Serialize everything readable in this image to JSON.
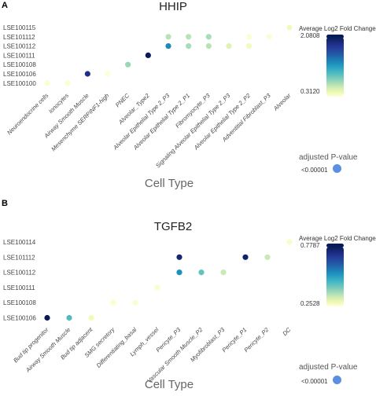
{
  "chart_data": [
    {
      "type": "scatter",
      "panel": "A",
      "title": "HHIP",
      "xlabel": "Cell Type",
      "ylabel": "",
      "y_categories": [
        "LSE100100",
        "LSE100106",
        "LSE100108",
        "LSE100111",
        "LSE100112",
        "LSE101112",
        "LSE100115"
      ],
      "x_categories": [
        "Neuroendocrine cells",
        "Ionocytes",
        "Airway Smooth Muscle",
        "Mesenchyme SERPINF1-high",
        "PNEC",
        "Alveolar_Type2",
        "Alveolar Epithelial Type 2_P3",
        "Alveolar Epithelial Type 2_P1",
        "Fibromyocyte_P3",
        "Signaling Alveolar Epithelial Type 2_P3",
        "Alveolar Epithelial Type 2_P2",
        "Adventitial Fibroblast_P3",
        "Alveolar"
      ],
      "points": [
        {
          "x": "Neuroendocrine cells",
          "y": "LSE100100",
          "value": 0.35
        },
        {
          "x": "Ionocytes",
          "y": "LSE100100",
          "value": 0.35
        },
        {
          "x": "Airway Smooth Muscle",
          "y": "LSE100106",
          "value": 1.9
        },
        {
          "x": "Mesenchyme SERPINF1-high",
          "y": "LSE100106",
          "value": 0.32
        },
        {
          "x": "PNEC",
          "y": "LSE100108",
          "value": 0.9
        },
        {
          "x": "Alveolar_Type2",
          "y": "LSE100111",
          "value": 2.08
        },
        {
          "x": "Alveolar Epithelial Type 2_P3",
          "y": "LSE100112",
          "value": 1.45
        },
        {
          "x": "Alveolar Epithelial Type 2_P3",
          "y": "LSE101112",
          "value": 0.8
        },
        {
          "x": "Alveolar Epithelial Type 2_P1",
          "y": "LSE100112",
          "value": 0.85
        },
        {
          "x": "Alveolar Epithelial Type 2_P1",
          "y": "LSE101112",
          "value": 0.8
        },
        {
          "x": "Fibromyocyte_P3",
          "y": "LSE100112",
          "value": 0.8
        },
        {
          "x": "Fibromyocyte_P3",
          "y": "LSE101112",
          "value": 0.85
        },
        {
          "x": "Signaling Alveolar Epithelial Type 2_P3",
          "y": "LSE100112",
          "value": 0.6
        },
        {
          "x": "Alveolar Epithelial Type 2_P2",
          "y": "LSE100112",
          "value": 0.45
        },
        {
          "x": "Alveolar Epithelial Type 2_P2",
          "y": "LSE101112",
          "value": 0.35
        },
        {
          "x": "Adventitial Fibroblast_P3",
          "y": "LSE101112",
          "value": 0.35
        },
        {
          "x": "Alveolar",
          "y": "LSE100115",
          "value": 0.45
        }
      ],
      "color_legend": {
        "title": "Average Log2 Fold Change",
        "max": 2.0808,
        "min": 0.312,
        "max_label": "2.0808",
        "min_label": "0.3120"
      },
      "size_legend": {
        "title": "adjusted P-value",
        "label": "<0.00001"
      },
      "grid": false
    },
    {
      "type": "scatter",
      "panel": "B",
      "title": "TGFB2",
      "xlabel": "Cell Type",
      "ylabel": "",
      "y_categories": [
        "LSE100106",
        "LSE100108",
        "LSE100111",
        "LSE100112",
        "LSE101112",
        "LSE100114"
      ],
      "x_categories": [
        "Bud tip progenitor",
        "Airway Smooth Muscle",
        "Bud tip adjacent",
        "SMG secretory",
        "Differentiating_basal",
        "Lymph_vessel",
        "Pericyte_P3",
        "Vascular Smooth Muscle_P2",
        "Myofibroblast_P3",
        "Pericyte_P1",
        "Pericyte_P2",
        "DC"
      ],
      "points": [
        {
          "x": "Bud tip progenitor",
          "y": "LSE100106",
          "value": 0.78
        },
        {
          "x": "Airway Smooth Muscle",
          "y": "LSE100106",
          "value": 0.5
        },
        {
          "x": "Bud tip adjacent",
          "y": "LSE100106",
          "value": 0.3
        },
        {
          "x": "SMG secretory",
          "y": "LSE100108",
          "value": 0.27
        },
        {
          "x": "Differentiating_basal",
          "y": "LSE100108",
          "value": 0.27
        },
        {
          "x": "Lymph_vessel",
          "y": "LSE100111",
          "value": 0.27
        },
        {
          "x": "Pericyte_P3",
          "y": "LSE100112",
          "value": 0.58
        },
        {
          "x": "Pericyte_P3",
          "y": "LSE101112",
          "value": 0.75
        },
        {
          "x": "Vascular Smooth Muscle_P2",
          "y": "LSE100112",
          "value": 0.48
        },
        {
          "x": "Myofibroblast_P3",
          "y": "LSE100112",
          "value": 0.38
        },
        {
          "x": "Pericyte_P1",
          "y": "LSE101112",
          "value": 0.76
        },
        {
          "x": "Pericyte_P2",
          "y": "LSE101112",
          "value": 0.38
        },
        {
          "x": "DC",
          "y": "LSE100114",
          "value": 0.28
        }
      ],
      "color_legend": {
        "title": "Average Log2 Fold Change",
        "max": 0.7787,
        "min": 0.2528,
        "max_label": "0.7787",
        "min_label": "0.2528"
      },
      "size_legend": {
        "title": "adjusted P-value",
        "label": "<0.00001"
      },
      "grid": false
    }
  ],
  "panels": [
    {
      "letter": "A",
      "title": "HHIP"
    },
    {
      "letter": "B",
      "title": "TGFB2"
    }
  ]
}
